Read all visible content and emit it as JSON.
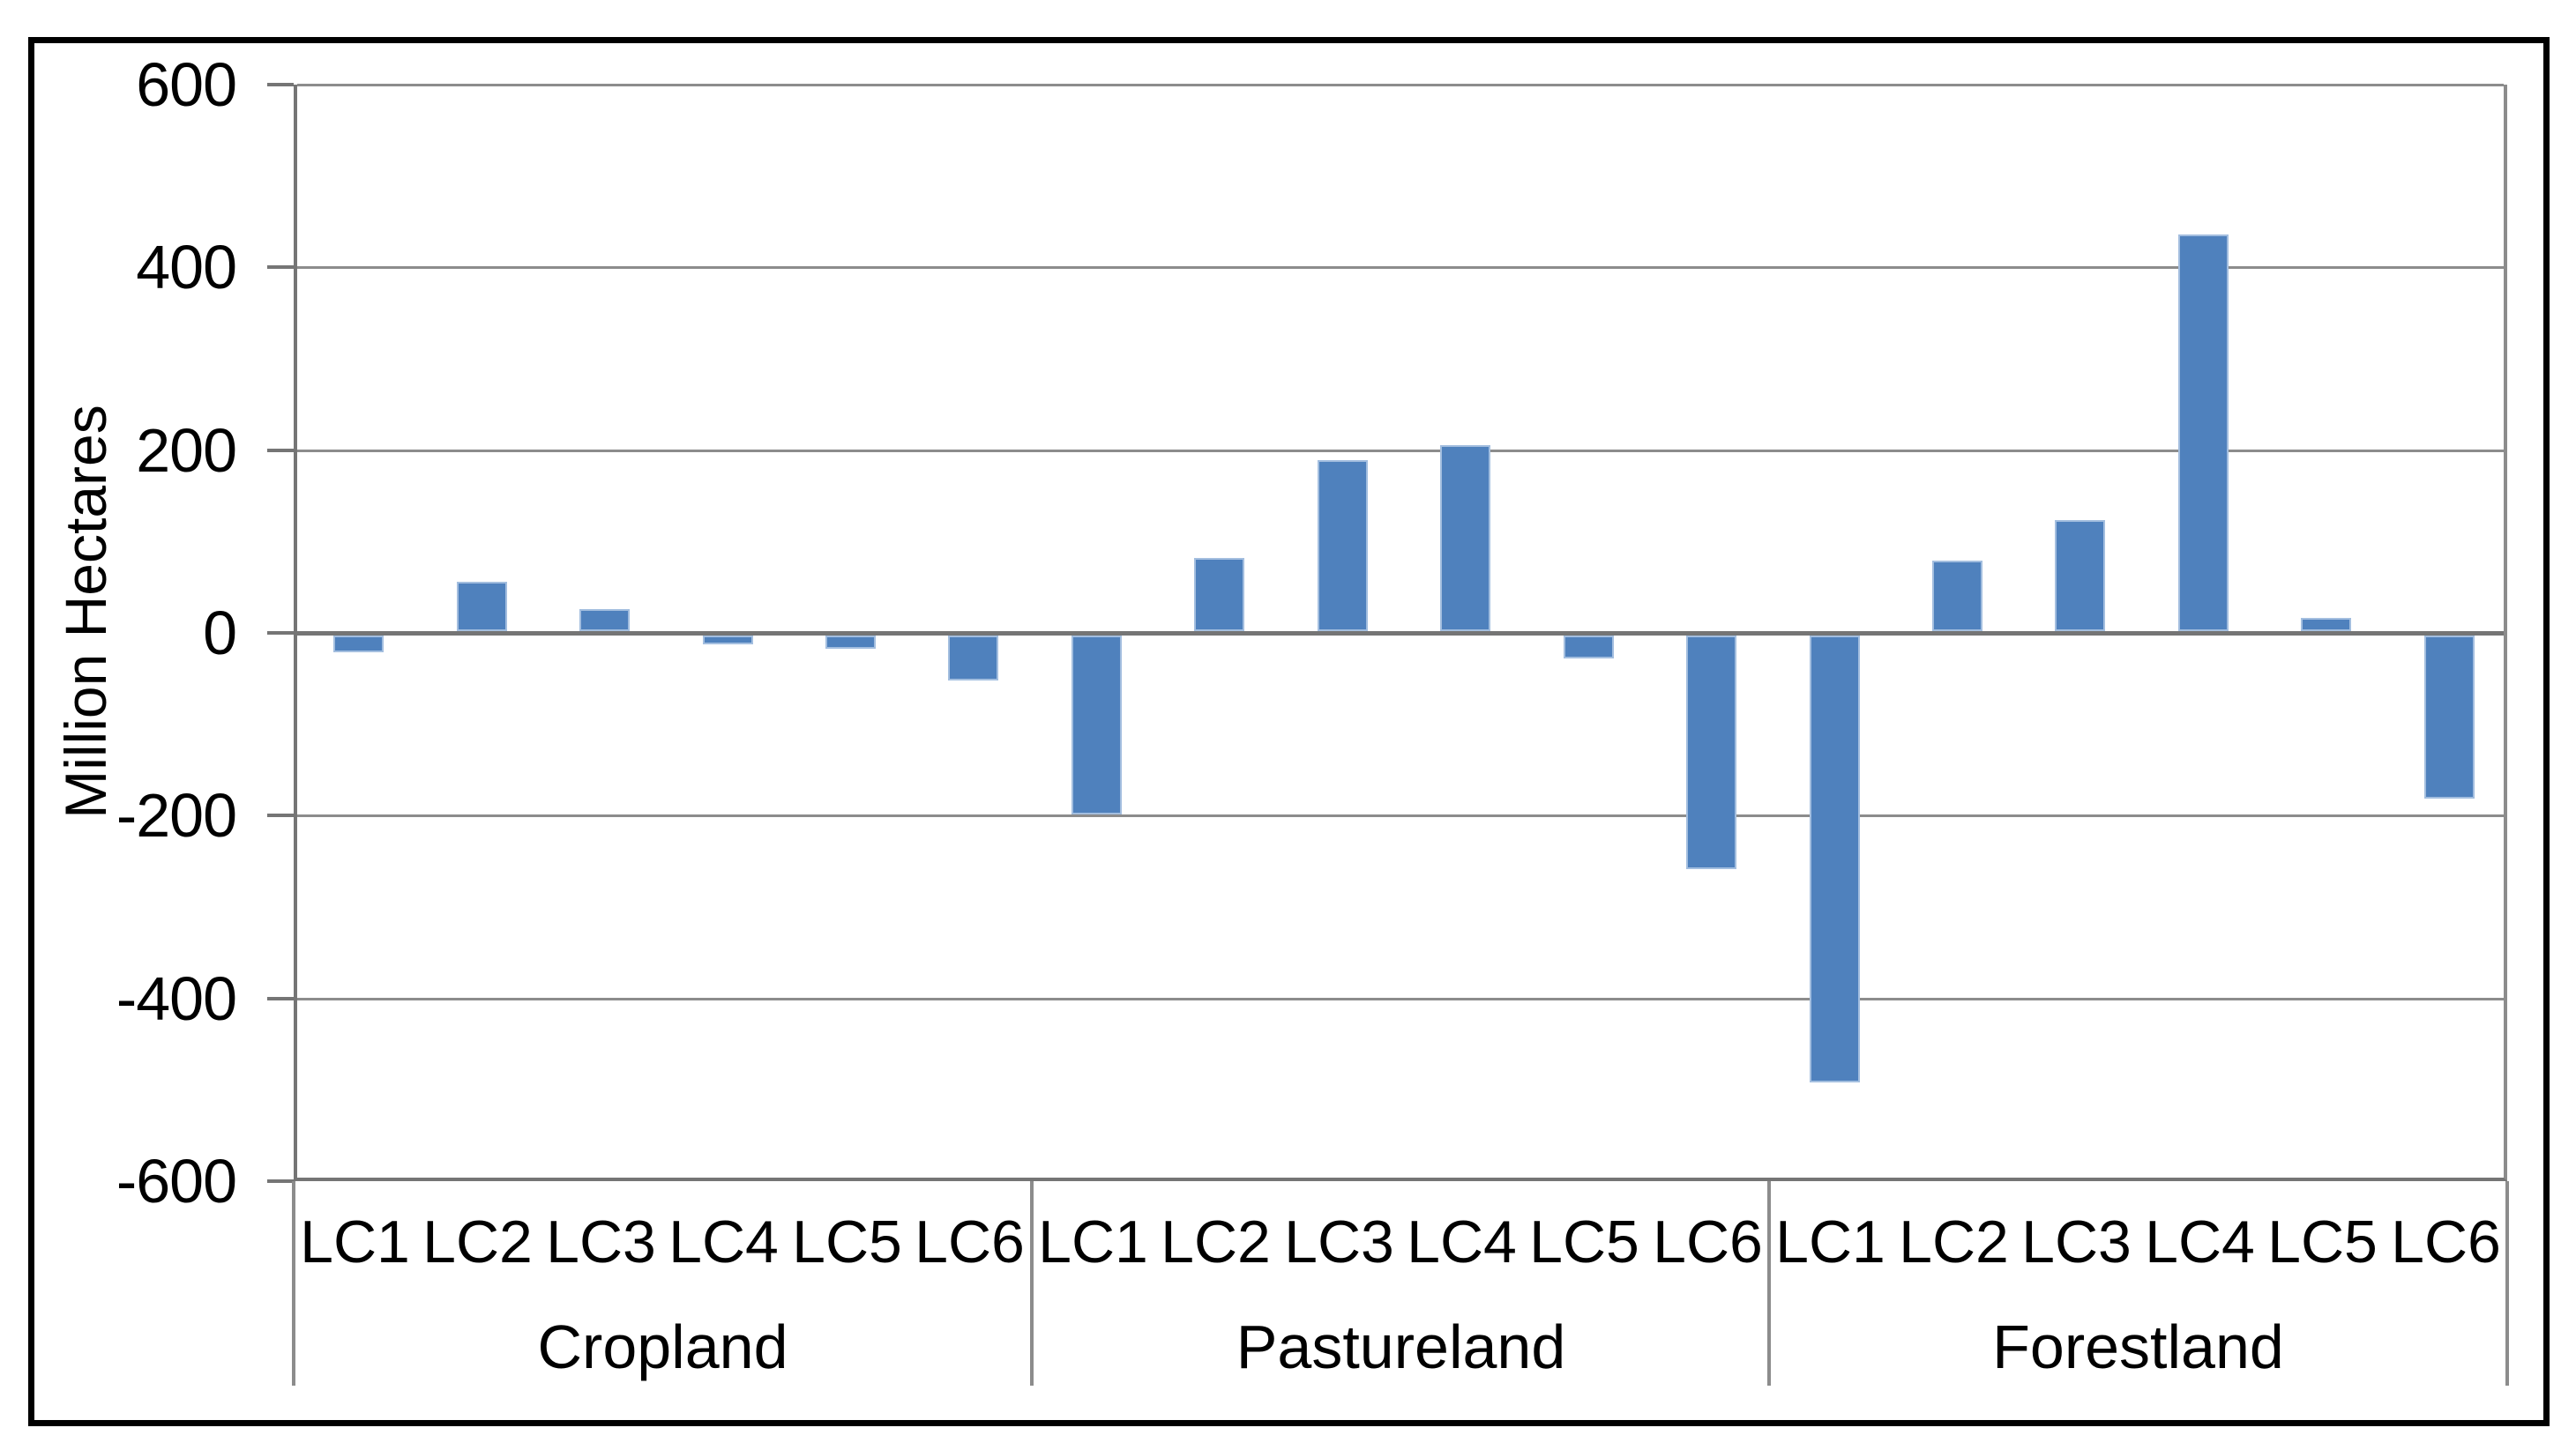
{
  "chart_data": {
    "type": "bar",
    "title": "",
    "ylabel": "Million Hectares",
    "xlabel": "",
    "ylim": [
      -600,
      600
    ],
    "yticks": [
      600,
      400,
      200,
      0,
      -200,
      -400,
      -600
    ],
    "ytick_labels": [
      "600",
      "400",
      "200",
      "0",
      "-200",
      "-400",
      "-600"
    ],
    "grid": true,
    "legend_position": "none",
    "categories": [
      "LC1",
      "LC2",
      "LC3",
      "LC4",
      "LC5",
      "LC6"
    ],
    "groups": [
      "Cropland",
      "Pastureland",
      "Forestland"
    ],
    "series": [
      {
        "name": "Cropland",
        "values": [
          -18,
          54,
          24,
          -10,
          -14,
          -49
        ]
      },
      {
        "name": "Pastureland",
        "values": [
          -196,
          80,
          187,
          204,
          -25,
          -256
        ]
      },
      {
        "name": "Forestland",
        "values": [
          -489,
          77,
          122,
          434,
          14,
          -178
        ]
      }
    ],
    "colors": {
      "bar_fill": "#4f81bd",
      "bar_border": "#a3bedf",
      "gridline": "#8c8c8c",
      "axis_line": "#757575",
      "figure_border": "#000000",
      "background": "#ffffff",
      "text": "#000000"
    }
  }
}
